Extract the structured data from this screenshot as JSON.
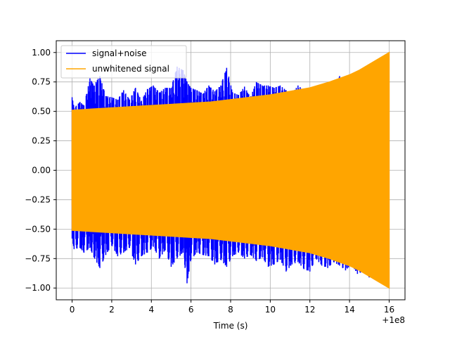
{
  "chart_data": {
    "type": "line",
    "title": "",
    "xlabel": "Time (s)",
    "ylabel": "",
    "x_offset_label": "+1e8",
    "xlim": [
      -0.8,
      16.8
    ],
    "ylim": [
      -1.1,
      1.1
    ],
    "x_ticks": [
      0,
      2,
      4,
      6,
      8,
      10,
      12,
      14,
      16
    ],
    "x_tick_labels": [
      "0",
      "2",
      "4",
      "6",
      "8",
      "10",
      "12",
      "14",
      "16"
    ],
    "y_ticks": [
      -1.0,
      -0.75,
      -0.5,
      -0.25,
      0.0,
      0.25,
      0.5,
      0.75,
      1.0
    ],
    "y_tick_labels": [
      "−1.00",
      "−0.75",
      "−0.50",
      "−0.25",
      "0.00",
      "0.25",
      "0.50",
      "0.75",
      "1.00"
    ],
    "grid": true,
    "legend_position": "top-left",
    "series": [
      {
        "name": "signal+noise",
        "color": "#0000ff",
        "x": [
          0.0,
          0.1,
          0.4,
          0.6,
          0.9,
          1.1,
          1.4,
          1.7,
          2.0,
          2.3,
          2.6,
          2.9,
          3.2,
          3.5,
          3.8,
          4.1,
          4.4,
          4.7,
          5.0,
          5.3,
          5.6,
          5.8,
          6.0,
          6.3,
          6.6,
          6.9,
          7.2,
          7.5,
          7.8,
          8.1,
          8.4,
          8.7,
          9.0,
          9.3,
          9.6,
          9.9,
          10.2,
          10.5,
          10.8,
          11.1,
          11.4,
          11.7,
          12.0,
          12.3,
          12.6,
          12.9,
          13.2,
          13.5,
          13.8,
          14.1,
          14.4,
          14.7,
          15.0,
          15.3,
          15.6,
          15.9,
          16.0
        ],
        "upper": [
          0.62,
          0.53,
          0.58,
          0.55,
          0.78,
          0.72,
          0.8,
          0.63,
          0.62,
          0.6,
          0.68,
          0.6,
          0.7,
          0.59,
          0.69,
          0.72,
          0.66,
          0.7,
          0.7,
          0.88,
          0.85,
          0.75,
          0.7,
          0.68,
          0.65,
          0.72,
          0.67,
          0.72,
          0.87,
          0.66,
          0.64,
          0.71,
          0.62,
          0.75,
          0.72,
          0.72,
          0.7,
          0.72,
          0.68,
          0.65,
          0.72,
          0.68,
          0.69,
          0.65,
          0.7,
          0.6,
          0.69,
          0.8,
          0.66,
          0.8,
          0.6,
          0.7,
          0.55,
          0.56,
          0.62,
          0.64,
          0.38
        ],
        "lower": [
          -0.58,
          -0.67,
          -0.66,
          -0.7,
          -0.66,
          -0.74,
          -0.83,
          -0.72,
          -0.64,
          -0.73,
          -0.7,
          -0.66,
          -0.8,
          -0.73,
          -0.7,
          -0.65,
          -0.75,
          -0.68,
          -0.82,
          -0.75,
          -0.7,
          -0.96,
          -0.76,
          -0.7,
          -0.72,
          -0.73,
          -0.8,
          -0.76,
          -0.82,
          -0.73,
          -0.7,
          -0.75,
          -0.72,
          -0.77,
          -0.74,
          -0.82,
          -0.8,
          -0.76,
          -0.86,
          -0.8,
          -0.78,
          -0.84,
          -0.86,
          -0.75,
          -0.81,
          -0.83,
          -0.78,
          -0.81,
          -0.85,
          -0.8,
          -0.88,
          -0.86,
          -0.91,
          -0.86,
          -0.92,
          -0.88,
          -0.6
        ]
      },
      {
        "name": "unwhitened signal",
        "color": "#ffa500",
        "x": [
          0.0,
          1.0,
          2.0,
          3.0,
          4.0,
          5.0,
          6.0,
          7.0,
          8.0,
          9.0,
          10.0,
          11.0,
          12.0,
          13.0,
          14.0,
          14.5,
          15.0,
          15.5,
          16.0
        ],
        "upper": [
          0.51,
          0.52,
          0.53,
          0.54,
          0.55,
          0.56,
          0.57,
          0.58,
          0.6,
          0.62,
          0.64,
          0.67,
          0.7,
          0.75,
          0.81,
          0.85,
          0.9,
          0.95,
          1.0
        ],
        "lower": [
          -0.51,
          -0.52,
          -0.53,
          -0.54,
          -0.55,
          -0.56,
          -0.57,
          -0.58,
          -0.6,
          -0.62,
          -0.64,
          -0.67,
          -0.7,
          -0.75,
          -0.81,
          -0.85,
          -0.9,
          -0.95,
          -1.0
        ]
      }
    ]
  }
}
